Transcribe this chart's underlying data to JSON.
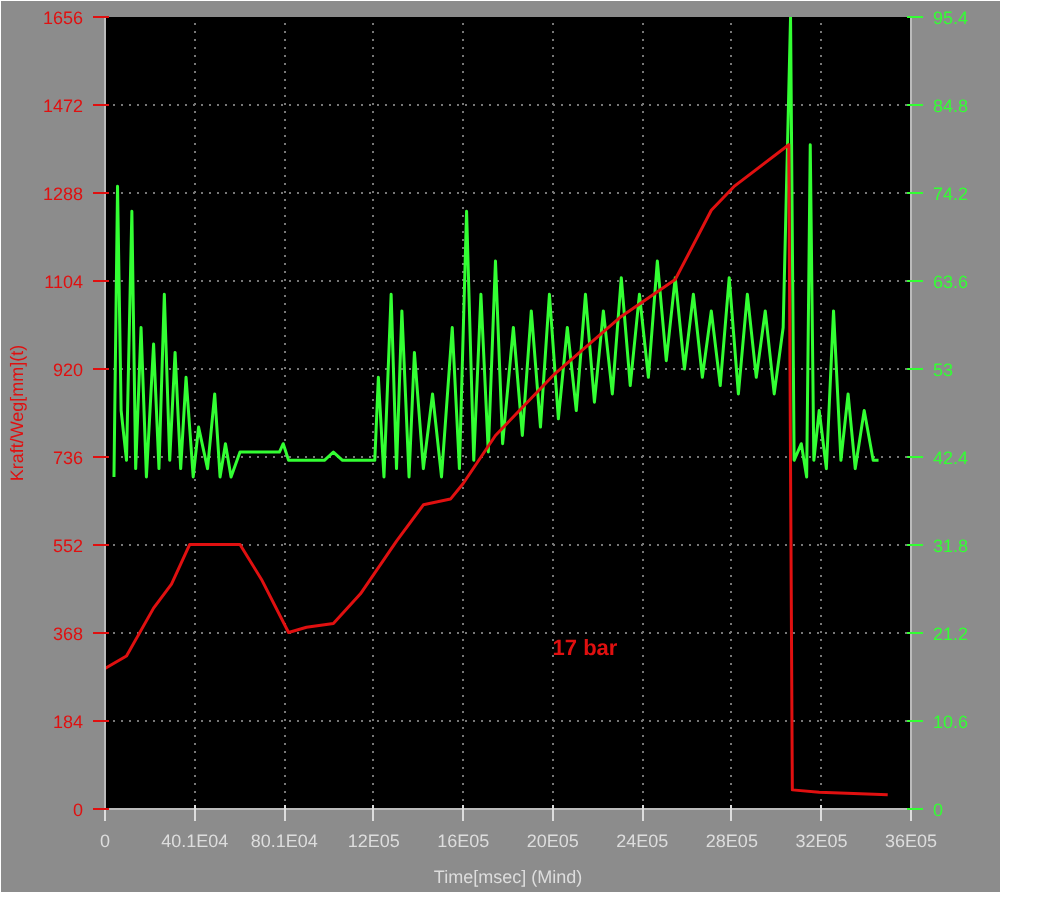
{
  "chart_data": {
    "type": "line",
    "xlabel": "Time[msec] (Mind)",
    "ylabel": "Kraft/Weg[mm](t)",
    "xlim": [
      0,
      3600000
    ],
    "xticks": [
      {
        "value": 0,
        "label": "0"
      },
      {
        "value": 401000,
        "label": "40.1E04"
      },
      {
        "value": 801000,
        "label": "80.1E04"
      },
      {
        "value": 1200000,
        "label": "12E05"
      },
      {
        "value": 1600000,
        "label": "16E05"
      },
      {
        "value": 2000000,
        "label": "20E05"
      },
      {
        "value": 2400000,
        "label": "24E05"
      },
      {
        "value": 2800000,
        "label": "28E05"
      },
      {
        "value": 3200000,
        "label": "32E05"
      },
      {
        "value": 3600000,
        "label": "36E05"
      }
    ],
    "ylim": [
      0,
      1656
    ],
    "yticks": [
      0,
      184,
      368,
      552,
      736,
      920,
      1104,
      1288,
      1472,
      1656
    ],
    "y2lim": [
      0,
      95.4
    ],
    "y2ticks": [
      0,
      10.6,
      21.2,
      31.8,
      42.4,
      53,
      63.6,
      74.2,
      84.8,
      95.4
    ],
    "grid": true,
    "line_style": "solid",
    "annotations": [
      "17 bar"
    ],
    "series": [
      {
        "color": "#33ff33",
        "axis": "y2",
        "x": [
          40000,
          56000,
          72000,
          96000,
          120000,
          137000,
          161000,
          185000,
          217000,
          241000,
          265000,
          289000,
          313000,
          338000,
          362000,
          394000,
          418000,
          458000,
          490000,
          514000,
          538000,
          563000,
          603000,
          779000,
          796000,
          820000,
          980000,
          1020000,
          1061000,
          1205000,
          1221000,
          1246000,
          1278000,
          1302000,
          1326000,
          1358000,
          1382000,
          1422000,
          1463000,
          1503000,
          1551000,
          1583000,
          1615000,
          1647000,
          1679000,
          1712000,
          1744000,
          1776000,
          1824000,
          1864000,
          1904000,
          1945000,
          1985000,
          2025000,
          2065000,
          2105000,
          2146000,
          2186000,
          2226000,
          2266000,
          2306000,
          2346000,
          2387000,
          2427000,
          2467000,
          2507000,
          2547000,
          2588000,
          2628000,
          2668000,
          2708000,
          2748000,
          2788000,
          2829000,
          2869000,
          2909000,
          2949000,
          2989000,
          3029000,
          3062000,
          3078000,
          3110000,
          3134000,
          3150000,
          3166000,
          3190000,
          3222000,
          3254000,
          3287000,
          3319000,
          3351000,
          3391000,
          3431000,
          3455000
        ],
        "values": [
          40,
          75,
          48,
          42,
          72,
          41,
          58,
          40,
          56,
          41,
          62,
          42,
          55,
          41,
          52,
          40,
          46,
          41,
          50,
          40,
          44,
          40,
          43,
          43,
          44,
          42,
          42,
          43,
          42,
          42,
          52,
          40,
          62,
          41,
          60,
          40,
          55,
          41,
          50,
          40,
          58,
          41,
          72,
          42,
          62,
          43,
          66,
          44,
          58,
          45,
          60,
          46,
          62,
          47,
          58,
          48,
          62,
          49,
          60,
          50,
          64,
          51,
          62,
          52,
          66,
          54,
          64,
          53,
          62,
          52,
          60,
          51,
          64,
          50,
          62,
          52,
          60,
          50,
          58,
          95.4,
          42,
          44,
          40,
          80,
          42,
          48,
          41,
          60,
          42,
          50,
          41,
          48,
          42,
          42
        ]
      },
      {
        "color": "#e01010",
        "x": [
          0,
          96000,
          217000,
          297000,
          378000,
          603000,
          699000,
          820000,
          900000,
          1020000,
          1141000,
          1302000,
          1422000,
          1543000,
          1599000,
          1744000,
          2009000,
          2306000,
          2547000,
          2708000,
          2813000,
          3054000,
          3070000,
          3190000,
          3496000
        ],
        "values": [
          294,
          320,
          420,
          470,
          553,
          553,
          480,
          369,
          380,
          388,
          450,
          560,
          636,
          648,
          680,
          781,
          910,
          1030,
          1107,
          1252,
          1303,
          1389,
          40,
          35,
          30
        ]
      }
    ]
  }
}
